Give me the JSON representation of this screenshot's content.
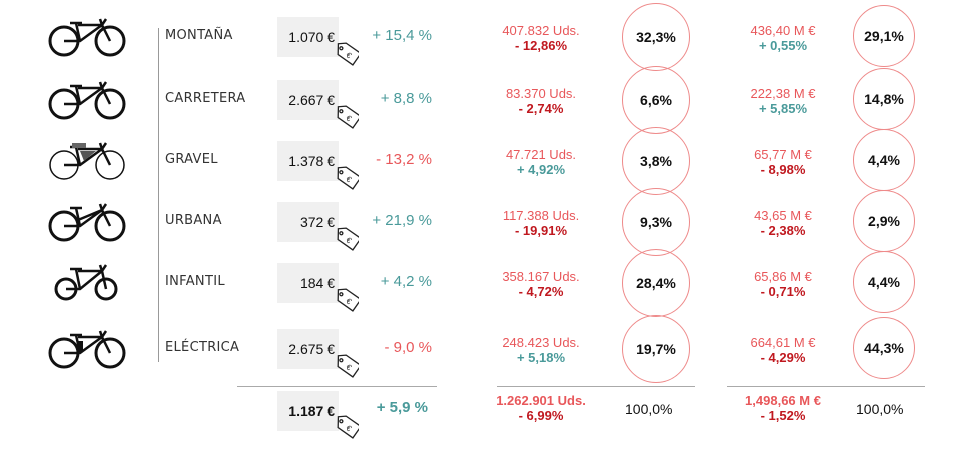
{
  "colors": {
    "positive": "#4a9a9a",
    "units": "#e8575a",
    "negative": "#c0181f",
    "circle": "#ee8a8a"
  },
  "rows": [
    {
      "icon": "mountain-bike-icon",
      "label": "MONTAÑA",
      "price": "1.070 €",
      "price_change": "+ 15,4 %",
      "price_trend": "up",
      "units": "407.832 Uds.",
      "units_change": "- 12,86%",
      "units_trend": "down",
      "units_share": "32,3%",
      "revenue": "436,40 M €",
      "revenue_change": "+ 0,55%",
      "revenue_trend": "up",
      "revenue_share": "29,1%"
    },
    {
      "icon": "road-bike-icon",
      "label": "CARRETERA",
      "price": "2.667 €",
      "price_change": "+ 8,8 %",
      "price_trend": "up",
      "units": "83.370 Uds.",
      "units_change": "- 2,74%",
      "units_trend": "down",
      "units_share": "6,6%",
      "revenue": "222,38 M €",
      "revenue_change": "+ 5,85%",
      "revenue_trend": "up",
      "revenue_share": "14,8%"
    },
    {
      "icon": "gravel-bike-icon",
      "label": "GRAVEL",
      "price": "1.378 €",
      "price_change": "- 13,2 %",
      "price_trend": "down",
      "units": "47.721 Uds.",
      "units_change": "+ 4,92%",
      "units_trend": "up",
      "units_share": "3,8%",
      "revenue": "65,77 M €",
      "revenue_change": "- 8,98%",
      "revenue_trend": "down",
      "revenue_share": "4,4%"
    },
    {
      "icon": "urban-bike-icon",
      "label": "URBANA",
      "price": "372 €",
      "price_change": "+ 21,9 %",
      "price_trend": "up",
      "units": "117.388 Uds.",
      "units_change": "- 19,91%",
      "units_trend": "down",
      "units_share": "9,3%",
      "revenue": "43,65 M €",
      "revenue_change": "- 2,38%",
      "revenue_trend": "down",
      "revenue_share": "2,9%"
    },
    {
      "icon": "kids-bike-icon",
      "label": "INFANTIL",
      "price": "184 €",
      "price_change": "+ 4,2 %",
      "price_trend": "up",
      "units": "358.167 Uds.",
      "units_change": "- 4,72%",
      "units_trend": "down",
      "units_share": "28,4%",
      "revenue": "65,86 M €",
      "revenue_change": "- 0,71%",
      "revenue_trend": "down",
      "revenue_share": "4,4%"
    },
    {
      "icon": "electric-bike-icon",
      "label": "ELÉCTRICA",
      "price": "2.675 €",
      "price_change": "- 9,0 %",
      "price_trend": "down",
      "units": "248.423 Uds.",
      "units_change": "+ 5,18%",
      "units_trend": "up",
      "units_share": "19,7%",
      "revenue": "664,61 M €",
      "revenue_change": "- 4,29%",
      "revenue_trend": "down",
      "revenue_share": "44,3%"
    }
  ],
  "total": {
    "price": "1.187 €",
    "price_change": "+ 5,9 %",
    "units": "1.262.901 Uds.",
    "units_change": "- 6,99%",
    "units_share": "100,0%",
    "revenue": "1,498,66 M €",
    "revenue_change": "- 1,52%",
    "revenue_share": "100,0%"
  }
}
